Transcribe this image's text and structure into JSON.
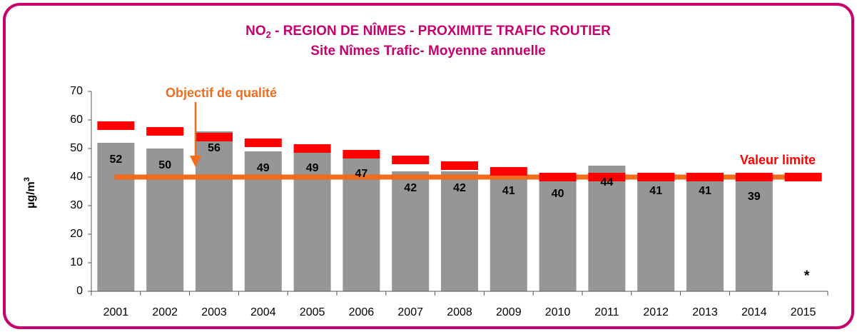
{
  "chart_data": {
    "type": "bar",
    "title": [
      "NO",
      "2",
      " - REGION DE NÎMES - PROXIMITE TRAFIC ROUTIER"
    ],
    "subtitle": "Site Nîmes Trafic- Moyenne annuelle",
    "ylabel": [
      "µg/m",
      "3"
    ],
    "categories": [
      "2001",
      "2002",
      "2003",
      "2004",
      "2005",
      "2006",
      "2007",
      "2008",
      "2009",
      "2010",
      "2011",
      "2012",
      "2013",
      "2014",
      "2015"
    ],
    "values": [
      52,
      50,
      56,
      49,
      49,
      47,
      42,
      42,
      41,
      40,
      44,
      41,
      41,
      39,
      null
    ],
    "color": "#969696",
    "limit_series": {
      "name": "Valeur limite",
      "color": "#ff0000",
      "values": [
        58,
        56,
        54,
        52,
        50,
        48,
        46,
        44,
        42,
        40,
        40,
        40,
        40,
        40,
        40
      ]
    },
    "objective": {
      "name": "Objectif de qualité",
      "color": "#f26c1c",
      "value": 40
    },
    "missing_note": "*",
    "ylim": [
      0,
      70
    ],
    "yticks": [
      0,
      10,
      20,
      30,
      40,
      50,
      60,
      70
    ],
    "title_color": "#c8006e"
  }
}
